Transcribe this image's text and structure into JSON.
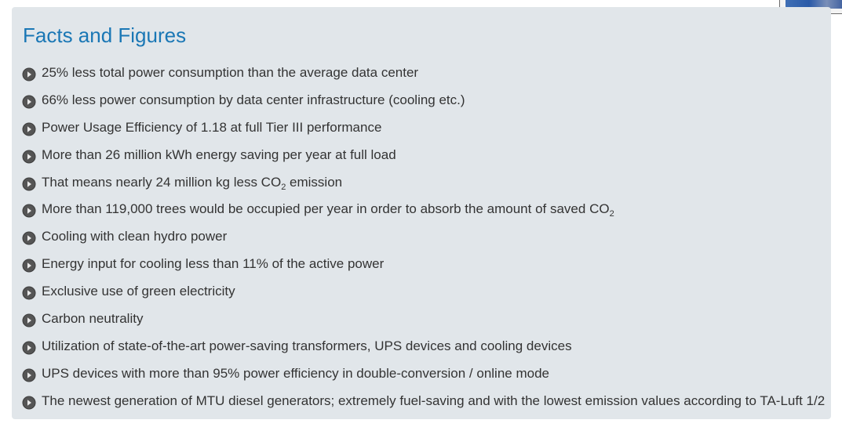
{
  "section": {
    "title": "Facts and Figures"
  },
  "bullet_icon": "play-circle-icon",
  "colors": {
    "title": "#1a77b5",
    "panel_background": "#e1e6ea",
    "text": "#333333",
    "bullet": "#555555"
  },
  "facts": [
    {
      "text": "25% less total power consumption than the average data center"
    },
    {
      "text": "66% less power consumption by data center infrastructure (cooling etc.)"
    },
    {
      "text": "Power Usage Efficiency of 1.18 at full Tier III performance"
    },
    {
      "text": "More than 26 million kWh energy saving per year at full load"
    },
    {
      "text": "That means nearly 24 million kg less CO",
      "sub": "2",
      "after": " emission"
    },
    {
      "text": "More than 119,000 trees would be occupied per year in order to absorb the amount of saved CO",
      "sub": "2",
      "after": ""
    },
    {
      "text": "Cooling with clean hydro power"
    },
    {
      "text": "Energy input for cooling less than 11% of the active power"
    },
    {
      "text": "Exclusive use of green electricity"
    },
    {
      "text": "Carbon neutrality"
    },
    {
      "text": "Utilization of state-of-the-art power-saving transformers, UPS devices and cooling devices"
    },
    {
      "text": "UPS devices with more than 95% power efficiency in double-conversion / online mode"
    },
    {
      "text": "The newest generation of MTU diesel generators; extremely fuel-saving and with the lowest emission values according to TA-Luft 1/2"
    }
  ]
}
